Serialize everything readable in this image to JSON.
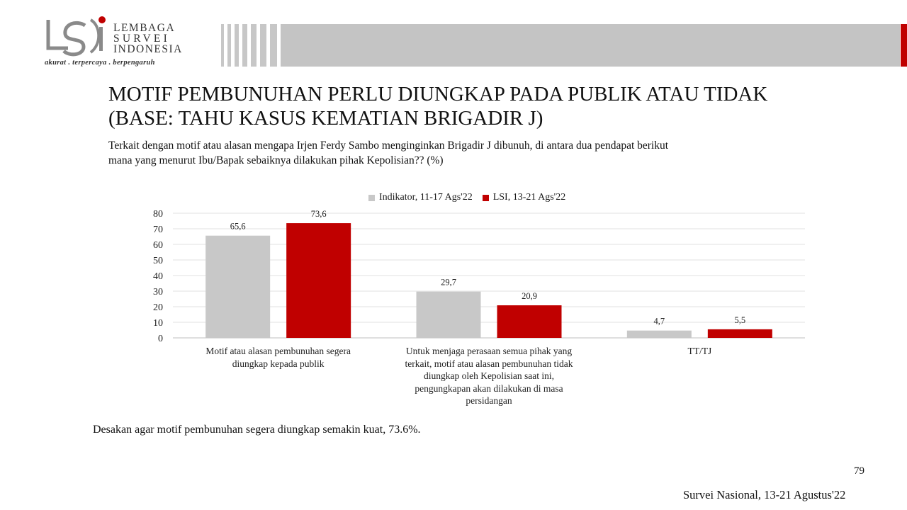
{
  "logo": {
    "name_lines": [
      "LEMBAGA",
      "SURVEI",
      "INDONESIA"
    ],
    "tagline": "akurat . terpercaya . berpengaruh"
  },
  "slide": {
    "title_line1": "MOTIF PEMBUNUHAN PERLU DIUNGKAP PADA PUBLIK ATAU TIDAK",
    "title_line2": "(BASE: TAHU KASUS KEMATIAN  BRIGADIR J)",
    "question_line1": "Terkait dengan motif atau alasan mengapa Irjen Ferdy Sambo menginginkan  Brigadir  J dibunuh,  di antara dua pendapat berikut",
    "question_line2": "mana yang menurut Ibu/Bapak sebaiknya dilakukan  pihak Kepolisian?? (%)",
    "summary": "Desakan agar motif pembunuhan segera diungkap semakin kuat, 73.6%.",
    "page_number": "79",
    "survey_name": "Survei Nasional, 13-21 Agustus'22"
  },
  "colors": {
    "series_1": "#c8c8c8",
    "series_2": "#c00000",
    "accent_red": "#c00000",
    "header_gray": "#c4c4c4"
  },
  "chart_data": {
    "type": "bar",
    "categories": [
      "Motif atau alasan pembunuhan segera diungkap kepada publik",
      "Untuk menjaga perasaan semua pihak yang terkait, motif atau alasan pembunuhan tidak diungkap oleh Kepolisian saat ini, pengungkapan akan dilakukan di masa persidangan",
      "TT/TJ"
    ],
    "category_lines": [
      [
        "Motif atau alasan pembunuhan segera",
        "diungkap kepada publik"
      ],
      [
        "Untuk menjaga perasaan semua pihak yang",
        "terkait, motif atau alasan pembunuhan tidak",
        "diungkap oleh Kepolisian saat ini,",
        "pengungkapan akan dilakukan di masa",
        "persidangan"
      ],
      [
        "TT/TJ"
      ]
    ],
    "series": [
      {
        "name": "Indikator, 11-17 Ags'22",
        "values": [
          65.6,
          29.7,
          4.7
        ],
        "labels": [
          "65,6",
          "29,7",
          "4,7"
        ],
        "color": "#c8c8c8"
      },
      {
        "name": "LSI, 13-21 Ags'22",
        "values": [
          73.6,
          20.9,
          5.5
        ],
        "labels": [
          "73,6",
          "20,9",
          "5,5"
        ],
        "color": "#c00000"
      }
    ],
    "ylim": [
      0,
      80
    ],
    "yticks": [
      0,
      10,
      20,
      30,
      40,
      50,
      60,
      70,
      80
    ],
    "xlabel": "",
    "ylabel": "",
    "grid": true,
    "legend_position": "top"
  }
}
